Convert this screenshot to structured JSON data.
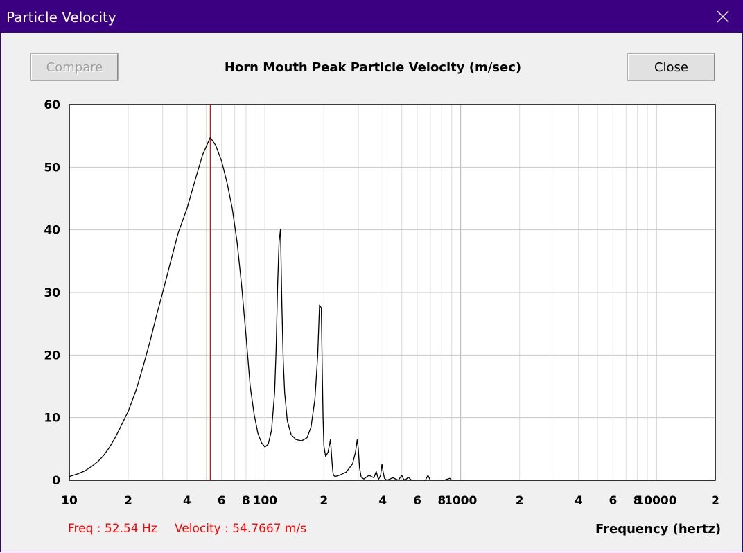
{
  "window": {
    "title": "Particle Velocity",
    "close_icon": "close-icon",
    "accent": "#3b0082"
  },
  "toolbar": {
    "compare_label": "Compare",
    "close_label": "Close"
  },
  "readout": {
    "freq": "Freq : 52.54 Hz",
    "velocity": "Velocity : 54.7667 m/s"
  },
  "chart_data": {
    "type": "line",
    "title": "Horn Mouth Peak Particle Velocity (m/sec)",
    "xlabel": "Frequency (hertz)",
    "ylabel": "",
    "xscale": "log",
    "xlim": [
      10,
      20000
    ],
    "ylim": [
      0,
      60
    ],
    "grid": true,
    "y_ticks": [
      0,
      10,
      20,
      30,
      40,
      50,
      60
    ],
    "y_tick_labels": [
      "0",
      "10",
      "20",
      "30",
      "40",
      "50",
      "60"
    ],
    "x_ticks": [
      10,
      20,
      40,
      60,
      80,
      100,
      200,
      400,
      600,
      800,
      1000,
      2000,
      4000,
      6000,
      8000,
      10000,
      20000
    ],
    "x_tick_labels": [
      "10",
      "2",
      "4",
      "6",
      "8",
      "100",
      "2",
      "4",
      "6",
      "8",
      "1000",
      "2",
      "4",
      "6",
      "8",
      "10000",
      "2"
    ],
    "cursor": {
      "x": 52.54,
      "y": 54.7667,
      "color": "#ff0000"
    },
    "series": [
      {
        "name": "Particle Velocity",
        "color": "#000000",
        "x": [
          10,
          11,
          12,
          13,
          14,
          15,
          16,
          17,
          18,
          19,
          20,
          22,
          24,
          26,
          28,
          30,
          33,
          36,
          40,
          44,
          48,
          52.54,
          56,
          60,
          64,
          68,
          72,
          76,
          80,
          84,
          88,
          92,
          96,
          100,
          104,
          108,
          112,
          114,
          116,
          118,
          120,
          122,
          124,
          126,
          130,
          136,
          144,
          154,
          164,
          172,
          180,
          186,
          190,
          194,
          196,
          198,
          200,
          204,
          210,
          216,
          220,
          222,
          224,
          228,
          240,
          260,
          280,
          290,
          296,
          300,
          304,
          310,
          320,
          340,
          360,
          370,
          380,
          390,
          396,
          400,
          408,
          420,
          450,
          480,
          500,
          510,
          520,
          540,
          560,
          600,
          660,
          680,
          700,
          760,
          820,
          880,
          900,
          960,
          1000,
          1500,
          3000,
          10000,
          20000
        ],
        "y": [
          0.6,
          1.0,
          1.5,
          2.2,
          3.0,
          4.0,
          5.2,
          6.6,
          8.1,
          9.6,
          11.0,
          14.5,
          18.5,
          22.5,
          26.5,
          30.0,
          35.0,
          39.5,
          43.5,
          48.0,
          52.0,
          54.7667,
          53.5,
          51.0,
          47.5,
          43.5,
          38.0,
          31.0,
          23.0,
          15.0,
          10.5,
          7.5,
          6.0,
          5.3,
          5.8,
          8.0,
          14.0,
          21.0,
          31.0,
          38.0,
          40.1,
          28.0,
          19.0,
          14.0,
          9.5,
          7.3,
          6.5,
          6.3,
          6.8,
          8.5,
          13.0,
          20.0,
          28.0,
          27.5,
          18.0,
          10.0,
          5.5,
          3.8,
          4.5,
          6.5,
          3.0,
          1.5,
          0.8,
          0.6,
          0.8,
          1.3,
          2.6,
          4.5,
          6.5,
          5.0,
          2.0,
          0.5,
          0.2,
          0.8,
          0.4,
          1.4,
          0.1,
          0.8,
          2.6,
          1.6,
          0.3,
          0.0,
          0.4,
          0.0,
          0.8,
          0.2,
          0.0,
          0.5,
          0.0,
          0.0,
          0.0,
          0.8,
          0.0,
          0.0,
          0.0,
          0.3,
          0.0,
          0.0,
          0.0,
          0.0,
          0.0,
          0.0,
          0.0
        ]
      }
    ]
  }
}
